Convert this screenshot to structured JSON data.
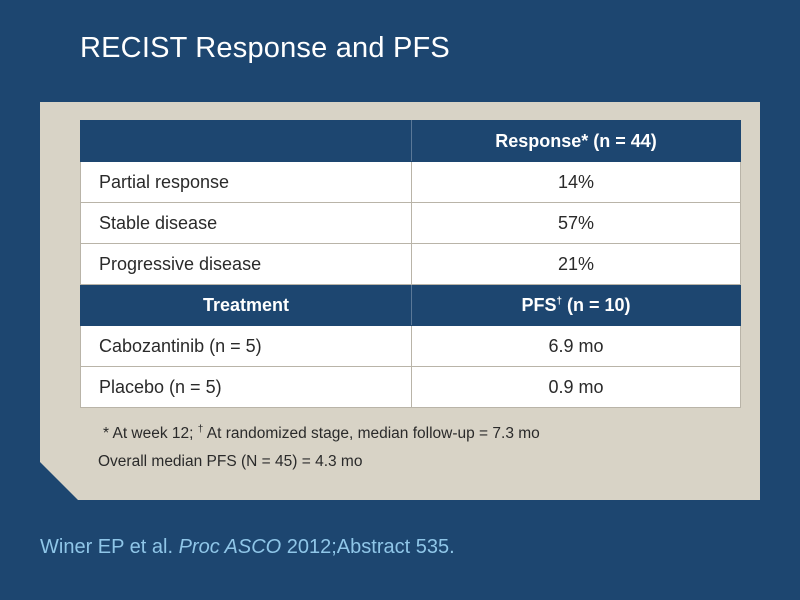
{
  "title": "RECIST Response and PFS",
  "table": {
    "header1": {
      "col1": "",
      "col2": "Response* (n = 44)"
    },
    "response_rows": [
      {
        "label": "Partial response",
        "value": "14%"
      },
      {
        "label": "Stable disease",
        "value": "57%"
      },
      {
        "label": "Progressive disease",
        "value": "21%"
      }
    ],
    "header2": {
      "col1": "Treatment",
      "col2_text": "PFS",
      "col2_sup": "†",
      "col2_rest": " (n = 10)"
    },
    "pfs_rows": [
      {
        "label": "Cabozantinib (n = 5)",
        "value": "6.9 mo"
      },
      {
        "label": "Placebo (n = 5)",
        "value": "0.9 mo"
      }
    ]
  },
  "footnotes": {
    "line1_part1": "* At week 12; ",
    "line1_sup": "†",
    "line1_part2": " At randomized stage, median follow-up = 7.3 mo",
    "line2": "Overall median PFS (N = 45) = 4.3 mo"
  },
  "citation": {
    "authors": "Winer EP et al. ",
    "journal": "Proc ASCO",
    "rest": " 2012;Abstract 535."
  }
}
